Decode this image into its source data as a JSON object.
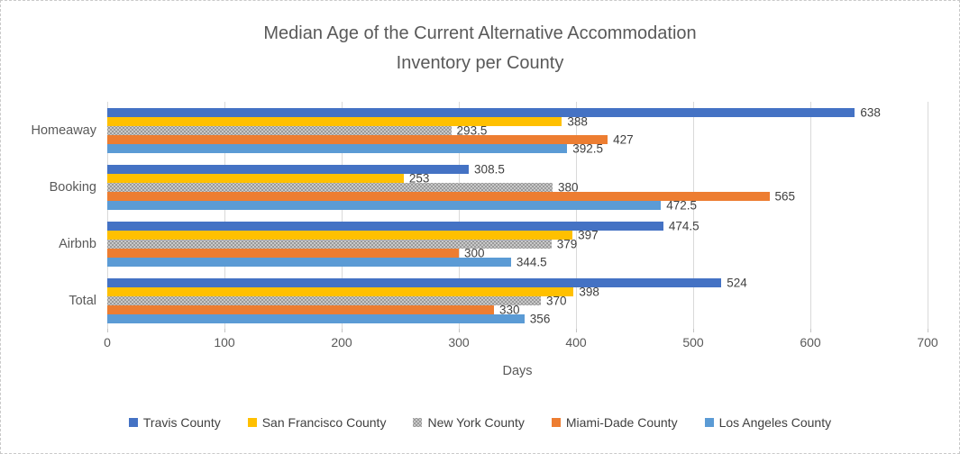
{
  "title": {
    "line1": "Median Age of the Current Alternative Accommodation",
    "line2": "Inventory per County"
  },
  "colors": {
    "gridline": "#D9D9D9",
    "axis_text": "#595959",
    "data_label": "#404040",
    "title_text": "#595959",
    "pattern_base": "#C9C9C9",
    "pattern_dot": "#8A8A8A"
  },
  "chart_data": {
    "type": "bar",
    "orientation": "horizontal",
    "title": "Median Age of the Current Alternative Accommodation Inventory per County",
    "xlabel": "Days",
    "ylabel": "",
    "xlim": [
      0,
      700
    ],
    "x_ticks": [
      0,
      100,
      200,
      300,
      400,
      500,
      600,
      700
    ],
    "grid": true,
    "legend_position": "bottom",
    "categories": [
      "Homeaway",
      "Booking",
      "Airbnb",
      "Total"
    ],
    "series": [
      {
        "name": "Travis County",
        "color": "#4472C4",
        "pattern": "solid",
        "values": [
          638,
          308.5,
          474.5,
          524
        ]
      },
      {
        "name": "San Francisco County",
        "color": "#FFC000",
        "pattern": "solid",
        "values": [
          388,
          253,
          397,
          398
        ]
      },
      {
        "name": "New York County",
        "color": "#A6A6A6",
        "pattern": "dots",
        "values": [
          293.5,
          380,
          379,
          370
        ]
      },
      {
        "name": "Miami-Dade County",
        "color": "#ED7D31",
        "pattern": "solid",
        "values": [
          427,
          565,
          300,
          330
        ]
      },
      {
        "name": "Los Angeles County",
        "color": "#5B9BD5",
        "pattern": "solid",
        "values": [
          392.5,
          472.5,
          344.5,
          356
        ]
      }
    ]
  }
}
